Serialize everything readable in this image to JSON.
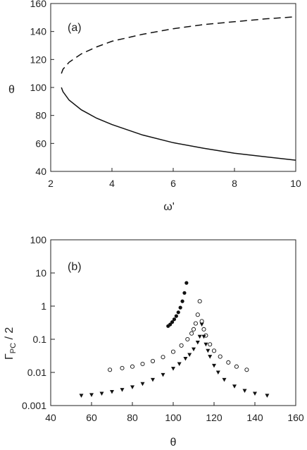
{
  "chart_data": [
    {
      "type": "line",
      "panel_label": "(a)",
      "xlabel": "ω'",
      "ylabel": "θ",
      "xlim": [
        2,
        10
      ],
      "ylim": [
        40,
        160
      ],
      "xticks": [
        "2",
        "4",
        "6",
        "8",
        "10"
      ],
      "yticks": [
        "40",
        "60",
        "80",
        "100",
        "120",
        "140",
        "160"
      ],
      "grid": false,
      "series": [
        {
          "style": "dashed",
          "x": [
            2.35,
            2.4,
            2.6,
            3.0,
            3.5,
            4.0,
            5.0,
            6.0,
            7.0,
            8.0,
            9.0,
            10.0
          ],
          "y": [
            110,
            113,
            118,
            124,
            129,
            133,
            138,
            142,
            145,
            147,
            149,
            150.5
          ]
        },
        {
          "style": "solid",
          "x": [
            2.35,
            2.4,
            2.6,
            3.0,
            3.5,
            4.0,
            5.0,
            6.0,
            7.0,
            8.0,
            9.0,
            10.0
          ],
          "y": [
            100,
            97,
            91,
            84,
            78,
            73.5,
            66,
            60.5,
            56.5,
            53,
            50.5,
            48
          ]
        }
      ]
    },
    {
      "type": "scatter",
      "panel_label": "(b)",
      "xlabel": "θ",
      "ylabel_main": "Γ",
      "ylabel_sub": "PC",
      "ylabel_tail": " / 2",
      "xlim": [
        40,
        160
      ],
      "ylim": [
        0.001,
        100
      ],
      "yscale": "log",
      "xticks": [
        "40",
        "60",
        "80",
        "100",
        "120",
        "140",
        "160"
      ],
      "yticks": [
        "0.001",
        "0.01",
        "0.1",
        "1",
        "10",
        "100"
      ],
      "grid": false,
      "series": [
        {
          "marker": "filled-circle",
          "x": [
            97.5,
            98.5,
            99.5,
            100.5,
            101.5,
            102.5,
            103.5,
            104.5,
            105.5,
            106.5
          ],
          "y": [
            0.25,
            0.28,
            0.33,
            0.4,
            0.5,
            0.65,
            0.9,
            1.4,
            2.5,
            5.0
          ]
        },
        {
          "marker": "open-circle",
          "x": [
            69,
            75,
            80,
            85,
            90,
            95,
            100,
            104,
            107,
            109,
            110,
            111,
            112,
            113,
            114,
            115,
            116,
            118,
            120,
            123,
            127,
            131,
            136
          ],
          "y": [
            0.012,
            0.0135,
            0.015,
            0.018,
            0.022,
            0.029,
            0.042,
            0.065,
            0.1,
            0.15,
            0.2,
            0.3,
            0.55,
            1.4,
            0.35,
            0.2,
            0.13,
            0.07,
            0.045,
            0.03,
            0.02,
            0.015,
            0.012
          ]
        },
        {
          "marker": "filled-triangle-down",
          "x": [
            55,
            60,
            65,
            70,
            75,
            80,
            85,
            90,
            95,
            100,
            103,
            106,
            108,
            110,
            112,
            113,
            114,
            115,
            116,
            117,
            118,
            120,
            122,
            125,
            130,
            135,
            140,
            146
          ],
          "y": [
            0.002,
            0.0021,
            0.0023,
            0.0026,
            0.003,
            0.0036,
            0.0045,
            0.006,
            0.0085,
            0.013,
            0.018,
            0.026,
            0.034,
            0.05,
            0.08,
            0.12,
            0.28,
            0.12,
            0.07,
            0.045,
            0.03,
            0.016,
            0.01,
            0.006,
            0.0038,
            0.0028,
            0.0023,
            0.002
          ]
        }
      ]
    }
  ]
}
